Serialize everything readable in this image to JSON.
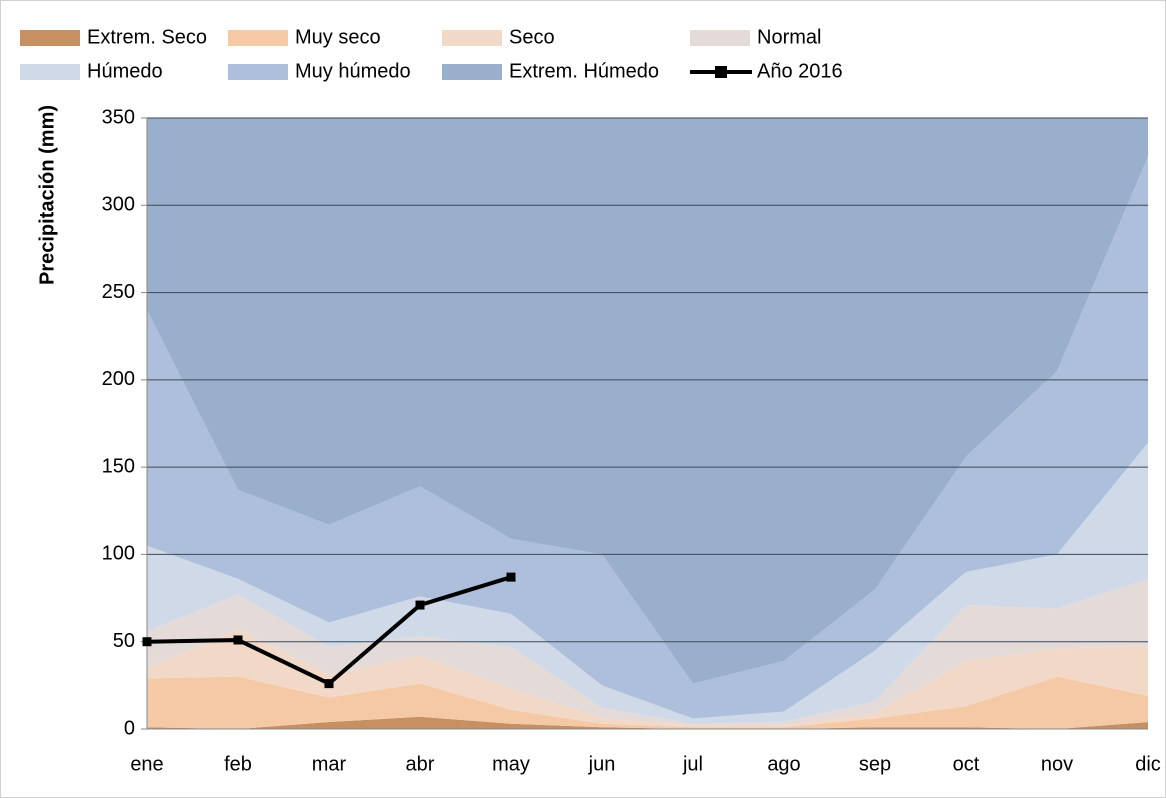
{
  "chart_data": {
    "type": "area",
    "stacked": true,
    "ylabel": "Precipitación (mm)",
    "categories": [
      "ene",
      "feb",
      "mar",
      "abr",
      "may",
      "jun",
      "jul",
      "ago",
      "sep",
      "oct",
      "nov",
      "dic"
    ],
    "ylim": [
      0,
      350
    ],
    "yticks": [
      0,
      50,
      100,
      150,
      200,
      250,
      300,
      350
    ],
    "grid": true,
    "series": [
      {
        "name": "Extrem. Seco",
        "color": "#c69063",
        "values": [
          1,
          0,
          4,
          7,
          3,
          1,
          0,
          0,
          1,
          1,
          0,
          4
        ]
      },
      {
        "name": "Muy seco",
        "color": "#f5c8a6",
        "values": [
          28,
          30,
          14,
          19,
          8,
          2,
          1,
          1,
          5,
          12,
          30,
          15
        ]
      },
      {
        "name": "Seco",
        "color": "#f2d8c6",
        "values": [
          6,
          27,
          13,
          16,
          12,
          3,
          1,
          1,
          3,
          26,
          16,
          29
        ]
      },
      {
        "name": "Normal",
        "color": "#e4dbd8",
        "values": [
          21,
          20,
          16,
          11,
          24,
          6,
          1,
          2,
          7,
          32,
          23,
          38
        ]
      },
      {
        "name": "Húmedo",
        "color": "#cfd9e8",
        "values": [
          49,
          9,
          14,
          23,
          19,
          13,
          3,
          6,
          29,
          19,
          31,
          78
        ]
      },
      {
        "name": "Muy húmedo",
        "color": "#adbfdb",
        "values": [
          135,
          51,
          56,
          63,
          43,
          75,
          20,
          29,
          35,
          66,
          105,
          164
        ]
      },
      {
        "name": "Extrem. Húmedo",
        "color": "#9aafcb",
        "values": [
          110,
          213,
          233,
          211,
          241,
          250,
          324,
          311,
          270,
          194,
          145,
          22
        ]
      },
      {
        "name": "Año 2016",
        "type": "line",
        "color": "#000000",
        "values": [
          50,
          51,
          26,
          71,
          87,
          null,
          null,
          null,
          null,
          null,
          null,
          null
        ]
      }
    ]
  }
}
